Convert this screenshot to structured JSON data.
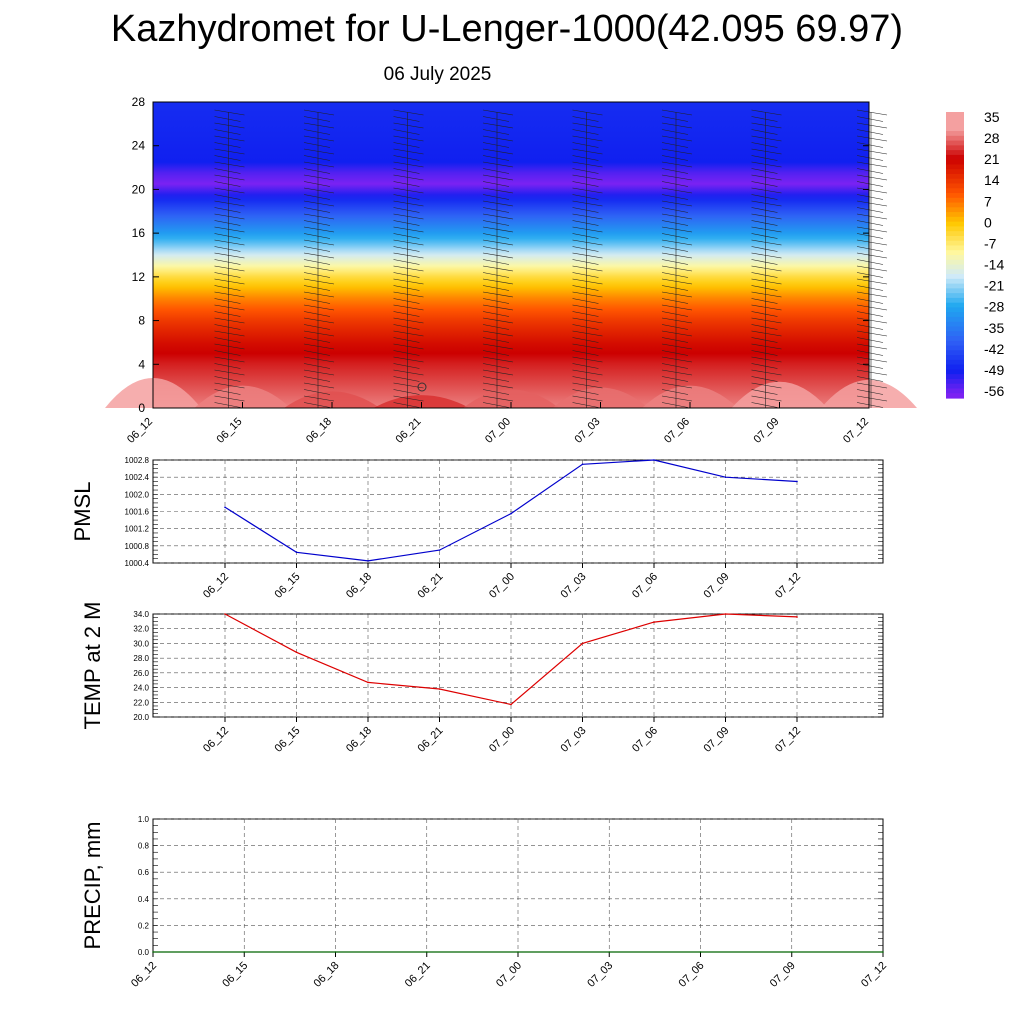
{
  "header": {
    "title": "Kazhydromet for U-Lenger-1000(42.095 69.97)",
    "subtitle": "06 July 2025"
  },
  "chart_data": [
    {
      "type": "heatmap",
      "name": "height-time temperature section with wind barbs",
      "x_ticks": [
        "06_12",
        "06_15",
        "06_18",
        "06_21",
        "07_00",
        "07_03",
        "07_06",
        "07_09",
        "07_12"
      ],
      "y_ticks": [
        "0",
        "4",
        "8",
        "12",
        "16",
        "20",
        "24",
        "28"
      ],
      "ylim": [
        0,
        28
      ],
      "colorbar_labels": [
        "35",
        "28",
        "21",
        "14",
        "7",
        "0",
        "-7",
        "-14",
        "-21",
        "-28",
        "-35",
        "-42",
        "-49",
        "-56"
      ],
      "temperature_vs_height": [
        {
          "z": 0,
          "t": 30
        },
        {
          "z": 2,
          "t": 27
        },
        {
          "z": 4,
          "t": 24
        },
        {
          "z": 6,
          "t": 20
        },
        {
          "z": 8,
          "t": 14
        },
        {
          "z": 10,
          "t": 6
        },
        {
          "z": 12,
          "t": -4
        },
        {
          "z": 13.5,
          "t": -14
        },
        {
          "z": 15,
          "t": -24
        },
        {
          "z": 17,
          "t": -36
        },
        {
          "z": 19,
          "t": -48
        },
        {
          "z": 20.5,
          "t": -58
        },
        {
          "z": 21.5,
          "t": -55
        },
        {
          "z": 22.5,
          "t": -50
        },
        {
          "z": 28,
          "t": -48
        }
      ],
      "surface_temperature": [
        34,
        30,
        27,
        25,
        28,
        29,
        30,
        32,
        33
      ],
      "colors": {
        "very_hot": "#f4a0a0",
        "hot": "#cc0000",
        "warm": "#ff5500",
        "mild": "#ffc800",
        "zero": "#fff8a0",
        "cool": "#cfeaf8",
        "cold": "#1fa8f0",
        "freezing": "#1020f0",
        "stratosphere": "#7b22f2"
      }
    },
    {
      "type": "line",
      "ylabel": "PMSL",
      "categories": [
        "06_12",
        "06_15",
        "06_18",
        "06_21",
        "07_00",
        "07_03",
        "07_06",
        "07_09",
        "07_12"
      ],
      "values": [
        1001.7,
        1000.65,
        1000.45,
        1000.7,
        1001.55,
        1002.7,
        1002.8,
        1002.4,
        1002.3
      ],
      "ylim": [
        1000.4,
        1002.8
      ],
      "y_ticks": [
        "1000.4",
        "1000.8",
        "1001.2",
        "1001.6",
        "1002.0",
        "1002.4",
        "1002.8"
      ],
      "color": "#0000cc",
      "grid": true
    },
    {
      "type": "line",
      "ylabel": "TEMP at 2 M",
      "categories": [
        "06_12",
        "06_15",
        "06_18",
        "06_21",
        "07_00",
        "07_03",
        "07_06",
        "07_09",
        "07_12"
      ],
      "values": [
        34.0,
        28.8,
        24.7,
        23.8,
        21.7,
        30.0,
        32.9,
        34.0,
        33.6
      ],
      "ylim": [
        20.0,
        34.0
      ],
      "y_ticks": [
        "20.0",
        "22.0",
        "24.0",
        "26.0",
        "28.0",
        "30.0",
        "32.0",
        "34.0"
      ],
      "color": "#dd0000",
      "grid": true
    },
    {
      "type": "line",
      "ylabel": "PRECIP, mm",
      "categories": [
        "06_12",
        "06_15",
        "06_18",
        "06_21",
        "07_00",
        "07_03",
        "07_06",
        "07_09",
        "07_12"
      ],
      "values": [
        0,
        0,
        0,
        0,
        0,
        0,
        0,
        0,
        0
      ],
      "ylim": [
        0.0,
        1.0
      ],
      "y_ticks": [
        "0.0",
        "0.2",
        "0.4",
        "0.6",
        "0.8",
        "1.0"
      ],
      "color": "#006400",
      "grid": true
    }
  ]
}
